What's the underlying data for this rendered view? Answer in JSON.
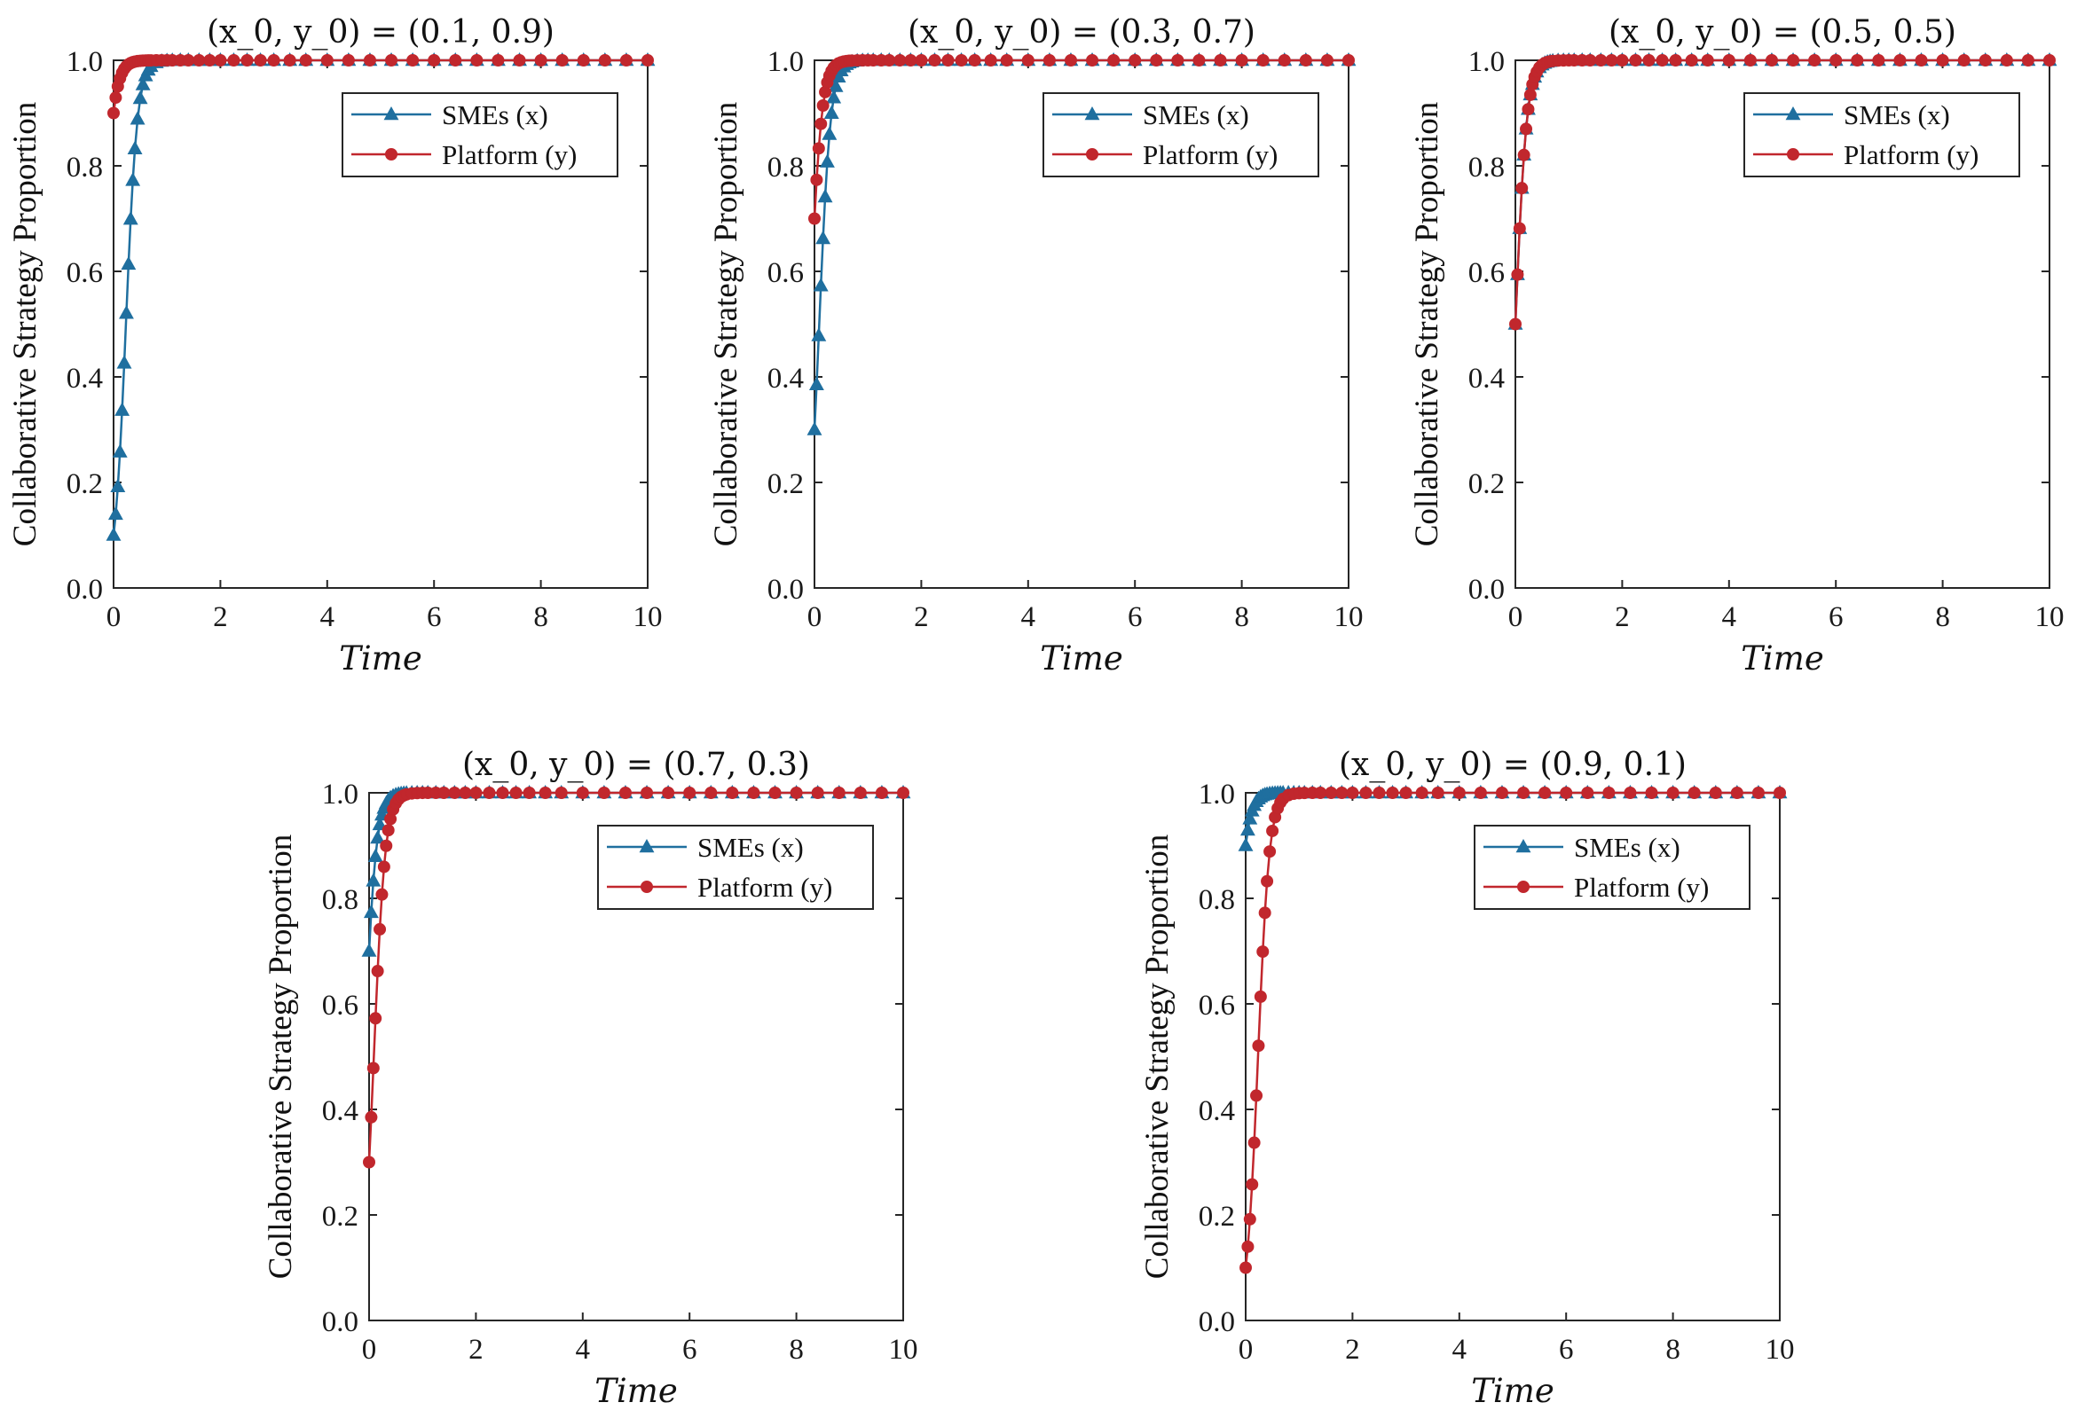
{
  "chart_data": [
    {
      "type": "line",
      "title": "(x_0, y_0) = (0.1, 0.9)",
      "xlabel": "Time",
      "ylabel": "Collaborative Strategy Proportion",
      "xlim": [
        0,
        10
      ],
      "ylim": [
        0,
        1
      ],
      "xticks": [
        "0",
        "2",
        "4",
        "6",
        "8",
        "10"
      ],
      "yticks": [
        "0.0",
        "0.2",
        "0.4",
        "0.6",
        "0.8",
        "1.0"
      ],
      "legend_position": "top-right",
      "series": [
        {
          "name": "SMEs (x)",
          "color": "#1f6f9f",
          "marker": "triangle",
          "x0": 0.1,
          "rate": 9.5
        },
        {
          "name": "Platform (y)",
          "color": "#c1272d",
          "marker": "circle",
          "x0": 0.9,
          "rate": 9.5
        }
      ]
    },
    {
      "type": "line",
      "title": "(x_0, y_0) = (0.3, 0.7)",
      "xlabel": "Time",
      "ylabel": "Collaborative Strategy Proportion",
      "xlim": [
        0,
        10
      ],
      "ylim": [
        0,
        1
      ],
      "xticks": [
        "0",
        "2",
        "4",
        "6",
        "8",
        "10"
      ],
      "yticks": [
        "0.0",
        "0.2",
        "0.4",
        "0.6",
        "0.8",
        "1.0"
      ],
      "legend_position": "top-right",
      "series": [
        {
          "name": "SMEs (x)",
          "color": "#1f6f9f",
          "marker": "triangle",
          "x0": 0.3,
          "rate": 9.5
        },
        {
          "name": "Platform (y)",
          "color": "#c1272d",
          "marker": "circle",
          "x0": 0.7,
          "rate": 9.5
        }
      ]
    },
    {
      "type": "line",
      "title": "(x_0, y_0) = (0.5, 0.5)",
      "xlabel": "Time",
      "ylabel": "Collaborative Strategy Proportion",
      "xlim": [
        0,
        10
      ],
      "ylim": [
        0,
        1
      ],
      "xticks": [
        "0",
        "2",
        "4",
        "6",
        "8",
        "10"
      ],
      "yticks": [
        "0.0",
        "0.2",
        "0.4",
        "0.6",
        "0.8",
        "1.0"
      ],
      "legend_position": "top-right",
      "series": [
        {
          "name": "SMEs (x)",
          "color": "#1f6f9f",
          "marker": "triangle",
          "x0": 0.5,
          "rate": 9.5
        },
        {
          "name": "Platform (y)",
          "color": "#c1272d",
          "marker": "circle",
          "x0": 0.5,
          "rate": 9.5
        }
      ]
    },
    {
      "type": "line",
      "title": "(x_0, y_0) = (0.7, 0.3)",
      "xlabel": "Time",
      "ylabel": "Collaborative Strategy Proportion",
      "xlim": [
        0,
        10
      ],
      "ylim": [
        0,
        1
      ],
      "xticks": [
        "0",
        "2",
        "4",
        "6",
        "8",
        "10"
      ],
      "yticks": [
        "0.0",
        "0.2",
        "0.4",
        "0.6",
        "0.8",
        "1.0"
      ],
      "legend_position": "top-right",
      "series": [
        {
          "name": "SMEs (x)",
          "color": "#1f6f9f",
          "marker": "triangle",
          "x0": 0.7,
          "rate": 9.5
        },
        {
          "name": "Platform (y)",
          "color": "#c1272d",
          "marker": "circle",
          "x0": 0.3,
          "rate": 9.5
        }
      ]
    },
    {
      "type": "line",
      "title": "(x_0, y_0) = (0.9, 0.1)",
      "xlabel": "Time",
      "ylabel": "Collaborative Strategy Proportion",
      "xlim": [
        0,
        10
      ],
      "ylim": [
        0,
        1
      ],
      "xticks": [
        "0",
        "2",
        "4",
        "6",
        "8",
        "10"
      ],
      "yticks": [
        "0.0",
        "0.2",
        "0.4",
        "0.6",
        "0.8",
        "1.0"
      ],
      "legend_position": "top-right",
      "series": [
        {
          "name": "SMEs (x)",
          "color": "#1f6f9f",
          "marker": "triangle",
          "x0": 0.9,
          "rate": 9.5
        },
        {
          "name": "Platform (y)",
          "color": "#c1272d",
          "marker": "circle",
          "x0": 0.1,
          "rate": 9.5
        }
      ]
    }
  ],
  "sample_times": [
    0,
    0.04,
    0.08,
    0.12,
    0.16,
    0.2,
    0.24,
    0.28,
    0.32,
    0.36,
    0.4,
    0.45,
    0.5,
    0.55,
    0.6,
    0.65,
    0.7,
    0.8,
    0.9,
    1.0,
    1.1,
    1.25,
    1.4,
    1.6,
    1.8,
    2.0,
    2.25,
    2.5,
    2.75,
    3.0,
    3.3,
    3.6,
    4.0,
    4.4,
    4.8,
    5.2,
    5.6,
    6.0,
    6.4,
    6.8,
    7.2,
    7.6,
    8.0,
    8.4,
    8.8,
    9.2,
    9.6,
    10.0
  ]
}
